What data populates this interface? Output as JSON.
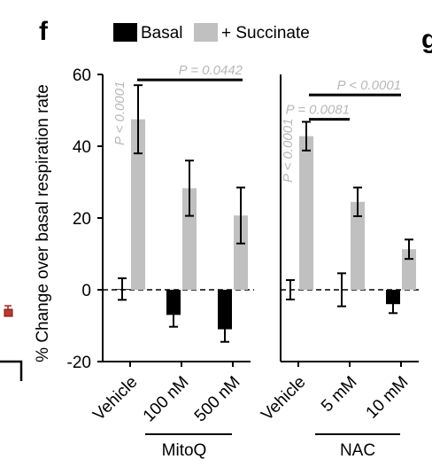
{
  "panel": {
    "letter": "f",
    "next_letter": "g"
  },
  "legend": {
    "basal_label": "Basal",
    "succinate_label": "+ Succinate",
    "basal_color": "#000000",
    "succinate_color": "#c0c0c0"
  },
  "chart_data": {
    "type": "bar",
    "ylabel": "% Change over basal  respiration rate",
    "ylim": [
      -20,
      60
    ],
    "yticks": [
      "60",
      "40",
      "20",
      "0",
      "-20"
    ],
    "series_names": [
      "Basal",
      "+ Succinate"
    ],
    "colors": {
      "basal": "#000000",
      "succinate": "#c0c0c0"
    },
    "panels": [
      {
        "group_label": "MitoQ",
        "categories": [
          "Vehicle",
          "100 nM",
          "500 nM"
        ],
        "basal": {
          "values": [
            0.2,
            -7.0,
            -11.0
          ],
          "err_hi": [
            3.0,
            3.3,
            3.5
          ],
          "err_lo": [
            3.0,
            3.3,
            3.5
          ]
        },
        "succinate": {
          "values": [
            47.5,
            28.3,
            20.7
          ],
          "err_hi": [
            9.5,
            7.7,
            7.8
          ],
          "err_lo": [
            9.5,
            7.7,
            7.8
          ]
        },
        "annotations": [
          {
            "text": "P < 0.0001",
            "kind": "vertical",
            "category": 0
          },
          {
            "text": "P = 0.0442",
            "kind": "bracket",
            "from": 0,
            "to": 2,
            "y": 58.5
          }
        ]
      },
      {
        "group_label": "NAC",
        "categories": [
          "Vehicle",
          "5 mM",
          "10 mM"
        ],
        "basal": {
          "values": [
            0.0,
            0.0,
            -4.0
          ],
          "err_hi": [
            2.7,
            4.6,
            2.5
          ],
          "err_lo": [
            2.7,
            4.6,
            2.5
          ]
        },
        "succinate": {
          "values": [
            42.8,
            24.5,
            11.3
          ],
          "err_hi": [
            4.0,
            4.0,
            2.7
          ],
          "err_lo": [
            4.0,
            4.0,
            2.7
          ]
        },
        "annotations": [
          {
            "text": "P < 0.0001",
            "kind": "vertical",
            "category": 0
          },
          {
            "text": "P < 0.0001",
            "kind": "bracket",
            "from": 0,
            "to": 2,
            "y": 54.3
          },
          {
            "text": "P = 0.0081",
            "kind": "bracket",
            "from": 0,
            "to": 1,
            "y": 47.5
          }
        ]
      }
    ]
  }
}
